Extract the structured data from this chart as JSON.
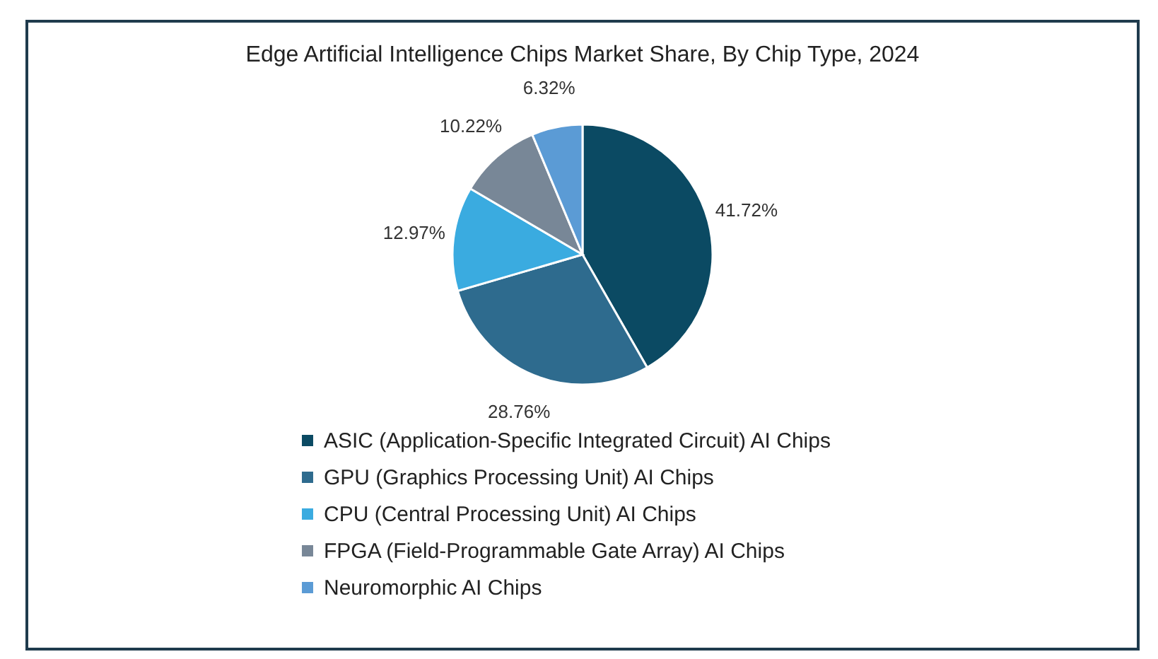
{
  "chart_data": {
    "type": "pie",
    "title": "Edge Artificial Intelligence Chips Market Share, By Chip Type, 2024",
    "categories": [
      "ASIC (Application-Specific Integrated Circuit) AI Chips",
      "GPU (Graphics Processing Unit) AI Chips",
      "CPU (Central Processing Unit) AI Chips",
      "FPGA (Field-Programmable Gate Array) AI Chips",
      "Neuromorphic AI Chips"
    ],
    "values": [
      41.72,
      28.76,
      12.97,
      10.22,
      6.32
    ],
    "value_labels": [
      "41.72%",
      "28.76%",
      "12.97%",
      "10.22%",
      "6.32%"
    ],
    "colors": [
      "#0b4a63",
      "#2e6b8e",
      "#3aabe0",
      "#788797",
      "#5b9bd5"
    ],
    "legend": "bottom"
  }
}
